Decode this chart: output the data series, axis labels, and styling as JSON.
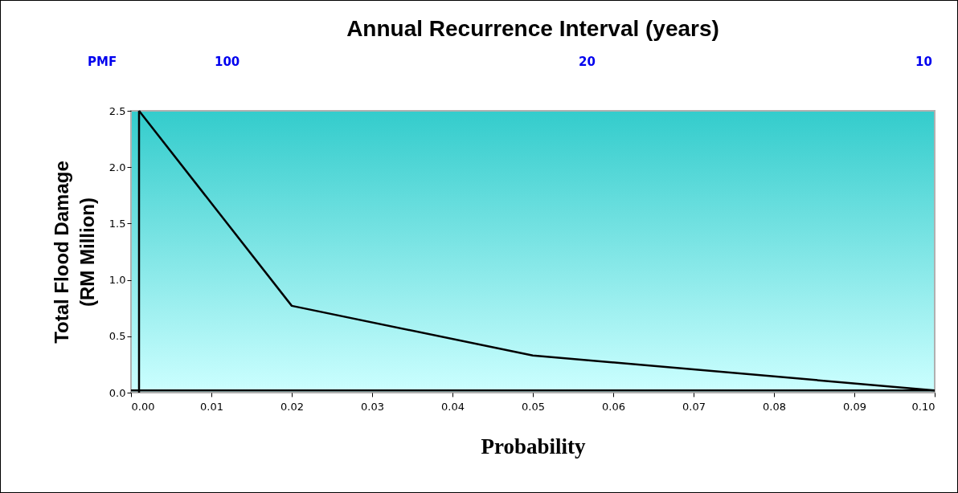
{
  "chart_data": {
    "type": "line",
    "title": "Annual Recurrence Interval (years)",
    "xlabel": "Probability",
    "ylabel": "Total Flood Damage\n(RM Million)",
    "x": [
      0.001,
      0.02,
      0.05,
      0.1
    ],
    "series": [
      {
        "color": "#000000",
        "values": [
          2.5,
          0.77,
          0.33,
          0.02
        ]
      }
    ],
    "xlim": [
      0,
      0.1
    ],
    "xticks": [
      {
        "value": 0,
        "label": "0.00"
      },
      0.01,
      0.02,
      0.03,
      0.04,
      0.05,
      0.06,
      0.07,
      0.08,
      0.09,
      {
        "value": 0.1,
        "label": "0.10"
      }
    ],
    "ylim": [
      0,
      2.5
    ],
    "yticks": [
      {
        "value": 0,
        "label": "0.0"
      },
      0.5,
      {
        "value": 1,
        "label": "1.0"
      },
      1.5,
      {
        "value": 2,
        "label": "2.0"
      },
      2.5
    ],
    "ref_lines": [
      {
        "axis": "x",
        "value": 0.001,
        "color": "#000000"
      },
      {
        "axis": "y",
        "value": 0.02,
        "color": "#000000"
      }
    ],
    "annotations": [
      "PMF",
      "100",
      "20",
      "10"
    ],
    "grid": false,
    "legend": false,
    "marker": "none",
    "line_style": "solid"
  }
}
